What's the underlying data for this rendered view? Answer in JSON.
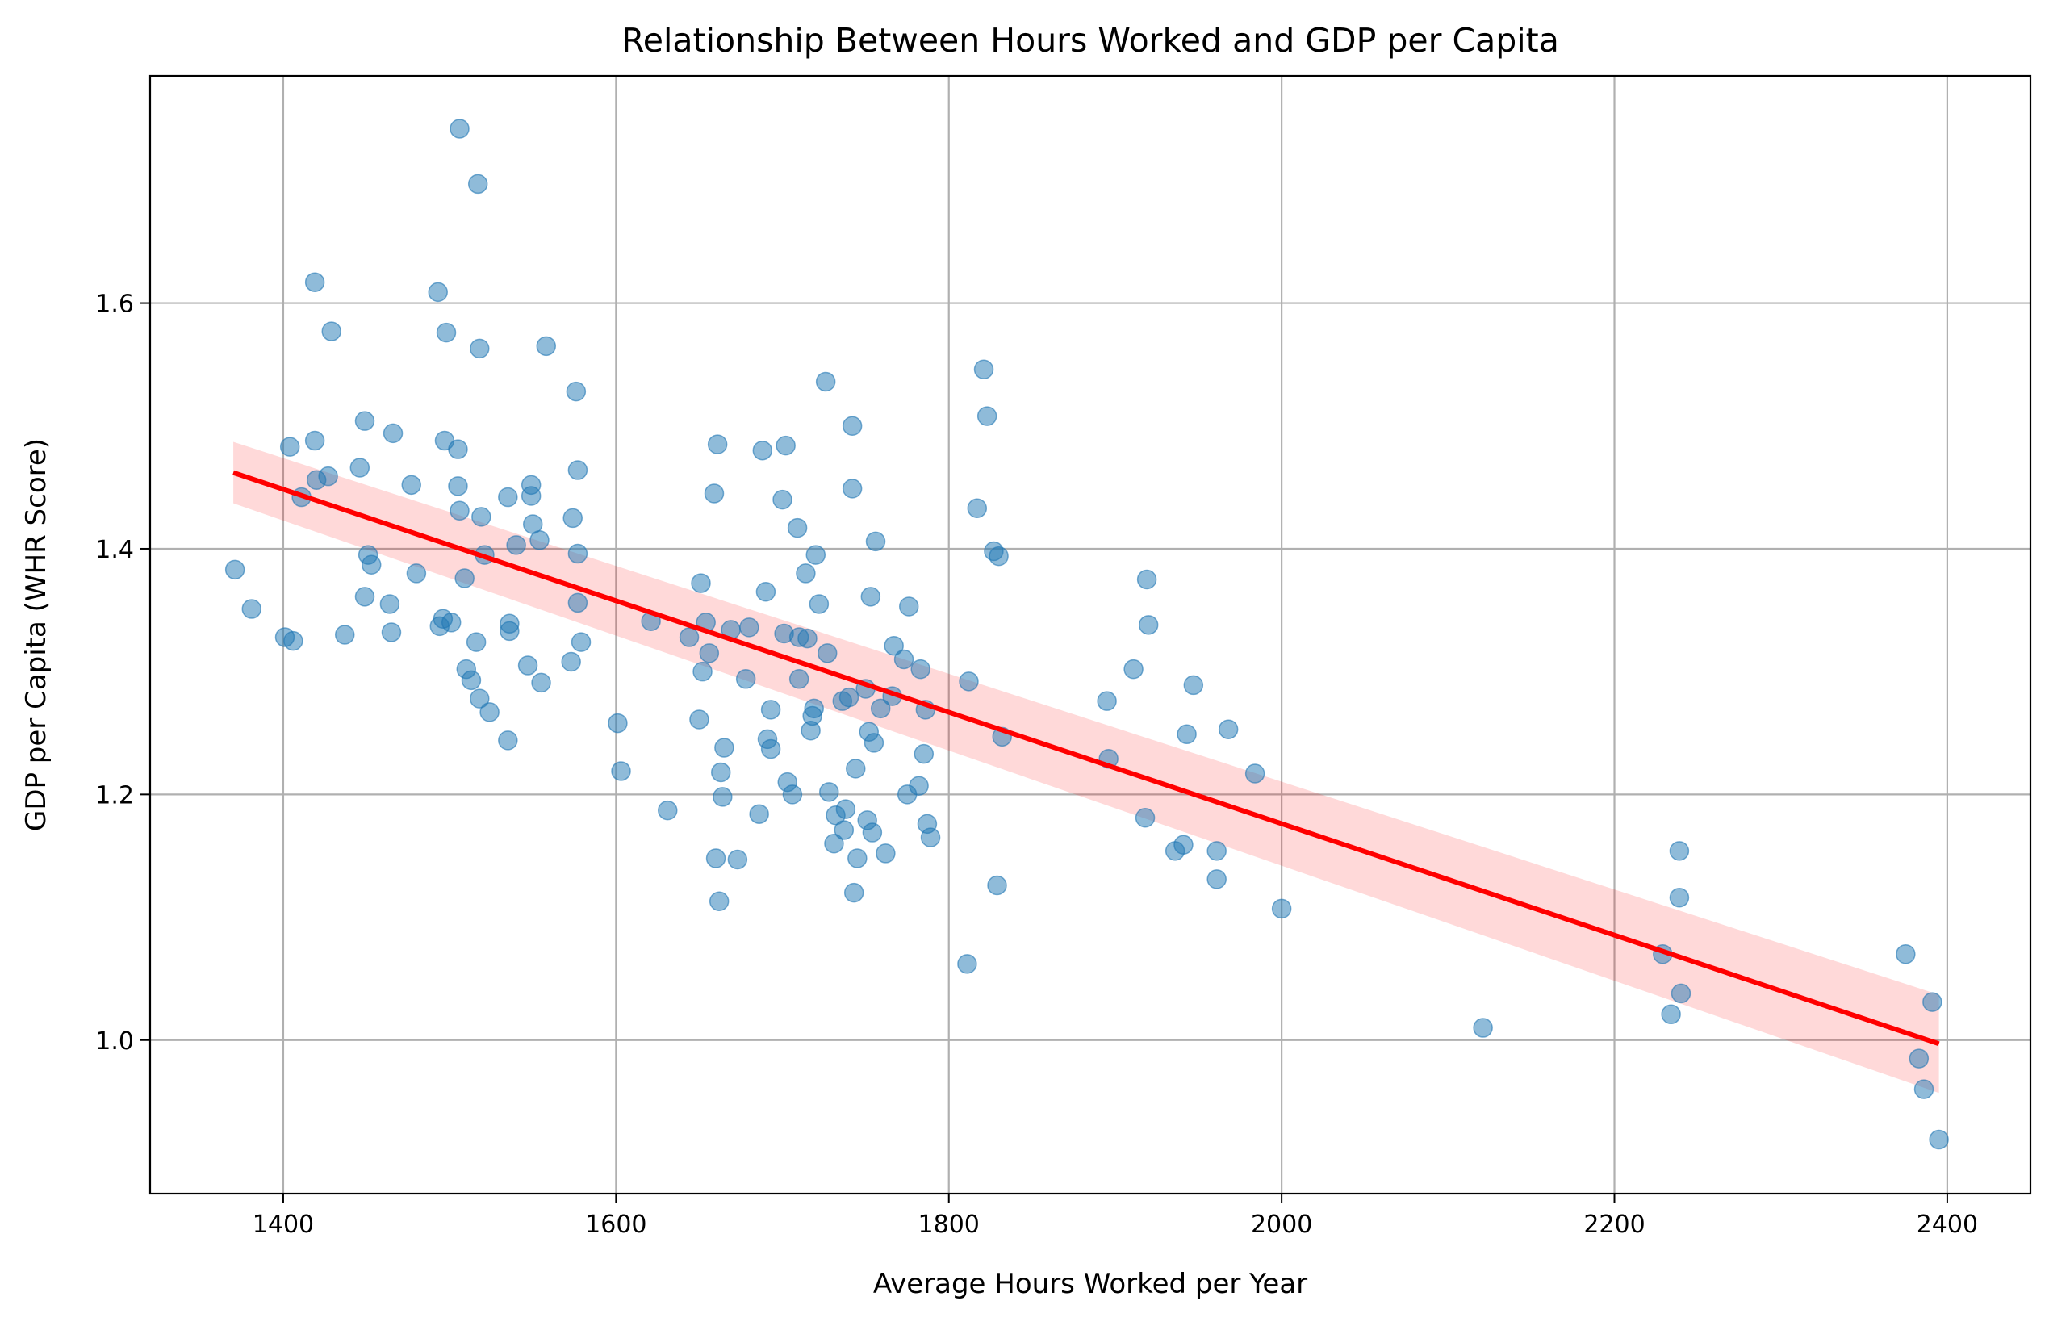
{
  "chart_data": {
    "type": "scatter",
    "title": "Relationship Between Hours Worked and GDP per Capita",
    "xlabel": "Average Hours Worked per Year",
    "ylabel": "GDP per Capita (WHR Score)",
    "xlim": [
      1320,
      2450
    ],
    "ylim": [
      0.875,
      1.785
    ],
    "xticks": [
      1400,
      1600,
      1800,
      2000,
      2200,
      2400
    ],
    "yticks": [
      1.0,
      1.2,
      1.4,
      1.6
    ],
    "ytick_labels": [
      "1.0",
      "1.2",
      "1.4",
      "1.6"
    ],
    "grid": true,
    "colors": {
      "points": "#1f77b4",
      "regression_line": "#ff0000",
      "confidence_band": "#ff0000"
    },
    "regression": {
      "x": [
        1370,
        2395
      ],
      "y": [
        1.462,
        0.997
      ],
      "ci_lower": [
        1.437,
        0.957
      ],
      "ci_upper": [
        1.487,
        1.037
      ]
    },
    "points": [
      [
        1371,
        1.383
      ],
      [
        1381,
        1.351
      ],
      [
        1401,
        1.328
      ],
      [
        1404,
        1.483
      ],
      [
        1406,
        1.325
      ],
      [
        1411,
        1.442
      ],
      [
        1419,
        1.617
      ],
      [
        1419,
        1.488
      ],
      [
        1420,
        1.456
      ],
      [
        1427,
        1.459
      ],
      [
        1429,
        1.577
      ],
      [
        1437,
        1.33
      ],
      [
        1446,
        1.466
      ],
      [
        1449,
        1.361
      ],
      [
        1449,
        1.504
      ],
      [
        1451,
        1.395
      ],
      [
        1453,
        1.387
      ],
      [
        1464,
        1.355
      ],
      [
        1465,
        1.332
      ],
      [
        1466,
        1.494
      ],
      [
        1477,
        1.452
      ],
      [
        1480,
        1.38
      ],
      [
        1493,
        1.609
      ],
      [
        1494,
        1.337
      ],
      [
        1496,
        1.343
      ],
      [
        1497,
        1.488
      ],
      [
        1498,
        1.576
      ],
      [
        1501,
        1.34
      ],
      [
        1505,
        1.451
      ],
      [
        1505,
        1.481
      ],
      [
        1506,
        1.431
      ],
      [
        1506,
        1.742
      ],
      [
        1509,
        1.376
      ],
      [
        1510,
        1.302
      ],
      [
        1513,
        1.293
      ],
      [
        1516,
        1.324
      ],
      [
        1517,
        1.697
      ],
      [
        1518,
        1.278
      ],
      [
        1518,
        1.563
      ],
      [
        1519,
        1.426
      ],
      [
        1521,
        1.395
      ],
      [
        1524,
        1.267
      ],
      [
        1535,
        1.244
      ],
      [
        1535,
        1.442
      ],
      [
        1536,
        1.333
      ],
      [
        1536,
        1.339
      ],
      [
        1540,
        1.403
      ],
      [
        1547,
        1.305
      ],
      [
        1549,
        1.452
      ],
      [
        1549,
        1.443
      ],
      [
        1550,
        1.42
      ],
      [
        1554,
        1.407
      ],
      [
        1555,
        1.291
      ],
      [
        1558,
        1.565
      ],
      [
        1573,
        1.308
      ],
      [
        1574,
        1.425
      ],
      [
        1576,
        1.528
      ],
      [
        1577,
        1.396
      ],
      [
        1577,
        1.356
      ],
      [
        1577,
        1.464
      ],
      [
        1579,
        1.324
      ],
      [
        1601,
        1.258
      ],
      [
        1603,
        1.219
      ],
      [
        1621,
        1.341
      ],
      [
        1631,
        1.187
      ],
      [
        1644,
        1.328
      ],
      [
        1650,
        1.261
      ],
      [
        1651,
        1.372
      ],
      [
        1652,
        1.3
      ],
      [
        1654,
        1.34
      ],
      [
        1656,
        1.315
      ],
      [
        1659,
        1.445
      ],
      [
        1660,
        1.148
      ],
      [
        1661,
        1.485
      ],
      [
        1662,
        1.113
      ],
      [
        1663,
        1.218
      ],
      [
        1664,
        1.198
      ],
      [
        1665,
        1.238
      ],
      [
        1669,
        1.334
      ],
      [
        1673,
        1.147
      ],
      [
        1678,
        1.294
      ],
      [
        1680,
        1.336
      ],
      [
        1686,
        1.184
      ],
      [
        1688,
        1.48
      ],
      [
        1690,
        1.365
      ],
      [
        1691,
        1.245
      ],
      [
        1693,
        1.237
      ],
      [
        1693,
        1.269
      ],
      [
        1700,
        1.44
      ],
      [
        1701,
        1.331
      ],
      [
        1702,
        1.484
      ],
      [
        1703,
        1.21
      ],
      [
        1706,
        1.2
      ],
      [
        1709,
        1.417
      ],
      [
        1710,
        1.328
      ],
      [
        1710,
        1.294
      ],
      [
        1714,
        1.38
      ],
      [
        1715,
        1.327
      ],
      [
        1717,
        1.252
      ],
      [
        1718,
        1.264
      ],
      [
        1719,
        1.27
      ],
      [
        1720,
        1.395
      ],
      [
        1722,
        1.355
      ],
      [
        1726,
        1.536
      ],
      [
        1727,
        1.315
      ],
      [
        1728,
        1.202
      ],
      [
        1731,
        1.16
      ],
      [
        1732,
        1.183
      ],
      [
        1736,
        1.276
      ],
      [
        1737,
        1.171
      ],
      [
        1738,
        1.188
      ],
      [
        1740,
        1.279
      ],
      [
        1742,
        1.449
      ],
      [
        1742,
        1.5
      ],
      [
        1743,
        1.12
      ],
      [
        1744,
        1.221
      ],
      [
        1745,
        1.148
      ],
      [
        1750,
        1.286
      ],
      [
        1751,
        1.179
      ],
      [
        1752,
        1.251
      ],
      [
        1753,
        1.361
      ],
      [
        1754,
        1.169
      ],
      [
        1755,
        1.242
      ],
      [
        1756,
        1.406
      ],
      [
        1759,
        1.27
      ],
      [
        1762,
        1.152
      ],
      [
        1766,
        1.28
      ],
      [
        1767,
        1.321
      ],
      [
        1773,
        1.31
      ],
      [
        1775,
        1.2
      ],
      [
        1776,
        1.353
      ],
      [
        1782,
        1.207
      ],
      [
        1783,
        1.302
      ],
      [
        1785,
        1.233
      ],
      [
        1786,
        1.269
      ],
      [
        1787,
        1.176
      ],
      [
        1789,
        1.165
      ],
      [
        1811,
        1.062
      ],
      [
        1812,
        1.292
      ],
      [
        1817,
        1.433
      ],
      [
        1821,
        1.546
      ],
      [
        1823,
        1.508
      ],
      [
        1827,
        1.398
      ],
      [
        1829,
        1.126
      ],
      [
        1830,
        1.394
      ],
      [
        1832,
        1.247
      ],
      [
        1895,
        1.276
      ],
      [
        1896,
        1.229
      ],
      [
        1911,
        1.302
      ],
      [
        1918,
        1.181
      ],
      [
        1919,
        1.375
      ],
      [
        1920,
        1.338
      ],
      [
        1936,
        1.154
      ],
      [
        1941,
        1.159
      ],
      [
        1943,
        1.249
      ],
      [
        1947,
        1.289
      ],
      [
        1961,
        1.154
      ],
      [
        1961,
        1.131
      ],
      [
        1968,
        1.253
      ],
      [
        1984,
        1.217
      ],
      [
        2000,
        1.107
      ],
      [
        2121,
        1.01
      ],
      [
        2229,
        1.07
      ],
      [
        2234,
        1.021
      ],
      [
        2239,
        1.154
      ],
      [
        2239,
        1.116
      ],
      [
        2240,
        1.038
      ],
      [
        2375,
        1.07
      ],
      [
        2383,
        0.985
      ],
      [
        2386,
        0.96
      ],
      [
        2391,
        1.031
      ],
      [
        2395,
        0.919
      ]
    ]
  }
}
